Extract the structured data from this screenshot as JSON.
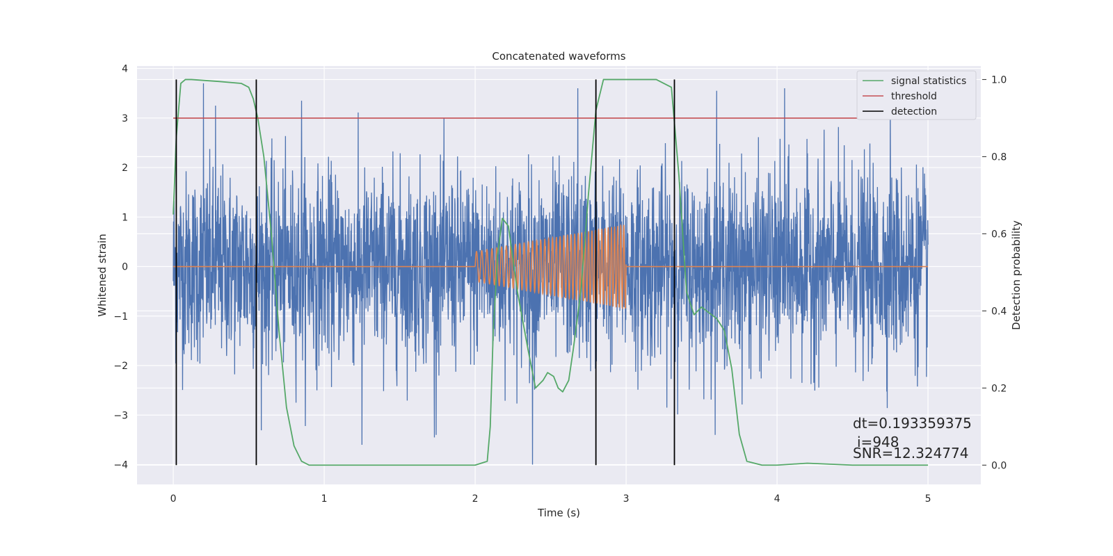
{
  "chart_data": {
    "type": "line",
    "title": "Concatenated waveforms",
    "xlabel": "Time (s)",
    "ylabel": "Whitened strain",
    "y2label": "Detection probability",
    "xlim": [
      -0.24,
      5.35
    ],
    "ylim": [
      -4.4,
      4.05
    ],
    "y2lim": [
      -0.05,
      1.035
    ],
    "x_ticks": [
      0,
      1,
      2,
      3,
      4,
      5
    ],
    "x_tick_labels": [
      "0",
      "1",
      "2",
      "3",
      "4",
      "5"
    ],
    "y_ticks": [
      4,
      3,
      2,
      1,
      0,
      -1,
      -2,
      -3,
      -4
    ],
    "y_tick_labels": [
      "4",
      "3",
      "2",
      "1",
      "0",
      "−1",
      "−2",
      "−3",
      "−4"
    ],
    "y2_ticks": [
      1.0,
      0.8,
      0.6,
      0.4,
      0.2,
      0.0
    ],
    "y2_tick_labels": [
      "1.0",
      "0.8",
      "0.6",
      "0.4",
      "0.2",
      "0.0"
    ],
    "grid": true,
    "legend_position": "top-right",
    "legend": [
      {
        "label": "signal statistics",
        "color": "#55a868"
      },
      {
        "label": "threshold",
        "color": "#c44e52"
      },
      {
        "label": "detection",
        "color": "#000000"
      }
    ],
    "colors": {
      "noise": "#4c72b0",
      "injection": "#dd8452",
      "signal_statistics": "#55a868",
      "threshold": "#c44e52",
      "detection": "#000000",
      "plot_background": "#eaeaf2",
      "grid": "#ffffff"
    },
    "series": [
      {
        "name": "whitened strain (noise)",
        "x_range": [
          0,
          5
        ],
        "approx_peak_values": [
          [
            0.2,
            3.7
          ],
          [
            0.28,
            3.25
          ],
          [
            0.85,
            3.35
          ],
          [
            2.38,
            -4.0
          ],
          [
            2.68,
            3.6
          ],
          [
            3.6,
            3.55
          ],
          [
            4.05,
            3.6
          ],
          [
            4.75,
            3.25
          ],
          [
            1.25,
            -3.6
          ],
          [
            1.73,
            -3.45
          ],
          [
            0.55,
            -2.9
          ]
        ]
      },
      {
        "name": "injected waveform",
        "x_range": [
          2.0,
          3.0
        ],
        "amplitude_start": 0.3,
        "amplitude_end": 0.85,
        "freq_start_hz": 28,
        "freq_end_hz": 50
      },
      {
        "name": "signal statistics",
        "axis": "right",
        "x": [
          0.0,
          0.02,
          0.05,
          0.08,
          0.12,
          0.3,
          0.45,
          0.5,
          0.53,
          0.56,
          0.6,
          0.65,
          0.7,
          0.75,
          0.8,
          0.85,
          0.9,
          1.0,
          1.5,
          1.8,
          2.0,
          2.08,
          2.1,
          2.12,
          2.15,
          2.18,
          2.22,
          2.28,
          2.35,
          2.4,
          2.45,
          2.48,
          2.52,
          2.55,
          2.58,
          2.62,
          2.65,
          2.7,
          2.75,
          2.8,
          2.85,
          2.95,
          3.2,
          3.3,
          3.35,
          3.4,
          3.45,
          3.5,
          3.6,
          3.65,
          3.7,
          3.75,
          3.8,
          3.9,
          4.0,
          4.2,
          4.5,
          5.0
        ],
        "values": [
          0.65,
          0.85,
          0.99,
          1.0,
          1.0,
          0.995,
          0.99,
          0.98,
          0.95,
          0.9,
          0.8,
          0.6,
          0.35,
          0.15,
          0.05,
          0.01,
          0.0,
          0.0,
          0.0,
          0.0,
          0.0,
          0.01,
          0.1,
          0.35,
          0.55,
          0.64,
          0.62,
          0.45,
          0.3,
          0.2,
          0.22,
          0.24,
          0.23,
          0.2,
          0.19,
          0.22,
          0.3,
          0.45,
          0.7,
          0.92,
          1.0,
          1.0,
          1.0,
          0.98,
          0.75,
          0.45,
          0.39,
          0.41,
          0.38,
          0.35,
          0.25,
          0.08,
          0.01,
          0.0,
          0.0,
          0.005,
          0.0,
          0.0
        ]
      },
      {
        "name": "threshold",
        "axis": "right",
        "x": [
          0.0,
          5.1
        ],
        "values": [
          0.9,
          0.9
        ]
      }
    ],
    "detections": [
      0.02,
      0.55,
      2.8,
      3.32
    ],
    "annotations": [
      "dt=0.193359375",
      "i=948",
      "SNR=12.324774"
    ]
  }
}
